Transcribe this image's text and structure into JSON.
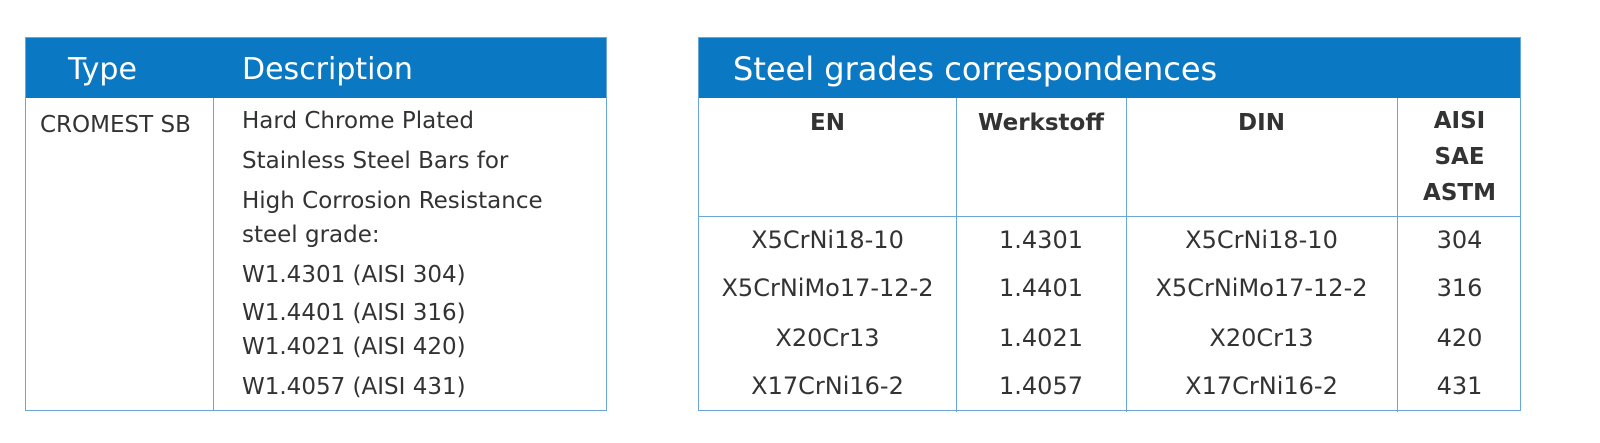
{
  "left_table": {
    "headers": [
      "Type",
      "Description"
    ],
    "rows": [
      [
        "CROMEST SB",
        [
          "Hard Chrome Plated",
          "Stainless Steel Bars for",
          "High Corrosion Resistance",
          "steel grade:",
          "W1.4301 (AISI 304)",
          "W1.4401 (AISI 316)",
          "W1.4021 (AISI 420)",
          "W1.4057 (AISI 431)"
        ]
      ]
    ]
  },
  "right_table": {
    "title": "Steel grades correspondences",
    "headers": [
      "EN",
      "Werkstoff",
      "DIN",
      [
        "AISI",
        "SAE",
        "ASTM"
      ]
    ],
    "rows": [
      [
        "X5CrNi18-10",
        "1.4301",
        "X5CrNi18-10",
        "304"
      ],
      [
        "X5CrNiMo17-12-2",
        "1.4401",
        "X5CrNiMo17-12-2",
        "316"
      ],
      [
        "X20Cr13",
        "1.4021",
        "X20Cr13",
        "420"
      ],
      [
        "X17CrNi16-2",
        "1.4057",
        "X17CrNi16-2",
        "431"
      ]
    ]
  }
}
